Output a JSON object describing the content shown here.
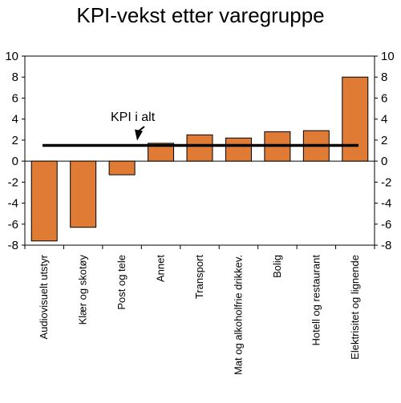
{
  "chart_data": {
    "type": "bar",
    "title": "KPI-vekst etter varegruppe",
    "categories": [
      "Audiovisuelt utstyr",
      "Klær og skotøy",
      "Post og tele",
      "Annet",
      "Transport",
      "Mat og alkoholfrie drikkev.",
      "Bolig",
      "Hotell og restaurant",
      "Elektrisitet og lignende"
    ],
    "values": [
      -7.6,
      -6.3,
      -1.3,
      1.7,
      2.5,
      2.2,
      2.8,
      2.9,
      8.0
    ],
    "reference_line": {
      "label": "KPI i alt",
      "value": 1.5
    },
    "ylim": [
      -8,
      10
    ],
    "yticks": [
      10,
      8,
      6,
      4,
      2,
      0,
      -2,
      -4,
      -6,
      -8
    ],
    "xlabel": "",
    "ylabel": "",
    "grid": false,
    "colors": {
      "bar_fill": "#e07b35",
      "bar_stroke": "#000000",
      "reference_line": "#000000",
      "axis": "#000000"
    }
  }
}
